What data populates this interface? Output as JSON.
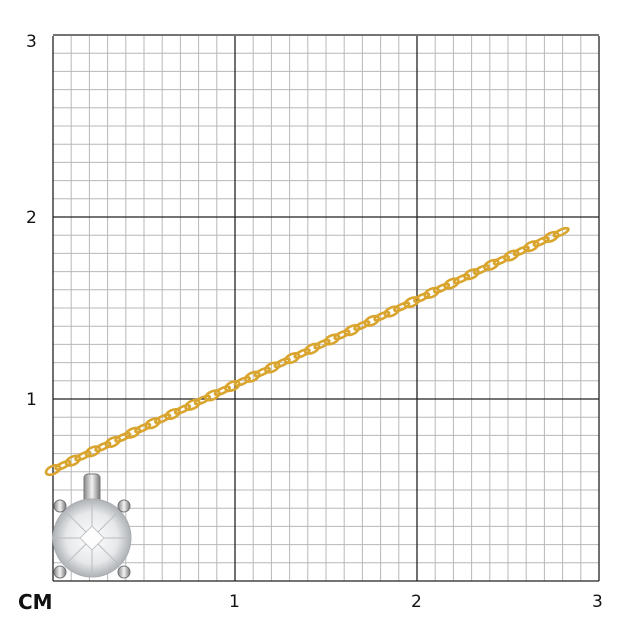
{
  "scale": {
    "unit": "CM",
    "x_labels": [
      "1",
      "2",
      "3"
    ],
    "y_labels": [
      "1",
      "2",
      "3"
    ],
    "major_per_cm": 1,
    "minor_per_cm": 10,
    "range_cm": [
      0,
      3
    ]
  },
  "colors": {
    "minor_grid": "#b8b8b8",
    "major_grid": "#222222",
    "chain": "#d9a52e",
    "metal": "#c8c8cc"
  },
  "product": {
    "icon": "diamond-pendant-icon",
    "chain_icon": "gold-chain-icon"
  }
}
